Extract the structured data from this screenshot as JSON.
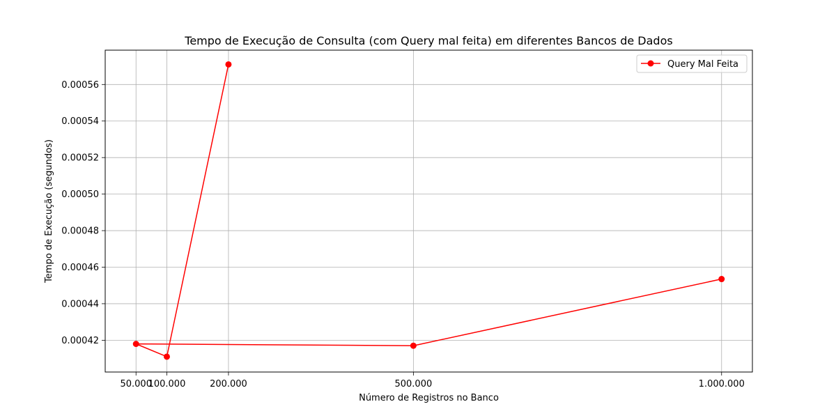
{
  "chart_data": {
    "type": "line",
    "title": "Tempo de Execução de Consulta (com Query mal feita) em diferentes Bancos de Dados",
    "xlabel": "Número de Registros no Banco",
    "ylabel": "Tempo de Execução (segundos)",
    "xlim": [
      0,
      1050000
    ],
    "ylim": [
      0.0004026,
      0.0005788
    ],
    "grid": true,
    "legend_position": "top-right",
    "x_ticks": [
      {
        "value": 50000,
        "label": "50.000"
      },
      {
        "value": 100000,
        "label": "100.000"
      },
      {
        "value": 200000,
        "label": "200.000"
      },
      {
        "value": 500000,
        "label": "500.000"
      },
      {
        "value": 1000000,
        "label": "1.000.000"
      }
    ],
    "y_ticks": [
      {
        "value": 0.00042,
        "label": "0.00042"
      },
      {
        "value": 0.00044,
        "label": "0.00044"
      },
      {
        "value": 0.00046,
        "label": "0.00046"
      },
      {
        "value": 0.00048,
        "label": "0.00048"
      },
      {
        "value": 0.0005,
        "label": "0.00050"
      },
      {
        "value": 0.00052,
        "label": "0.00052"
      },
      {
        "value": 0.00054,
        "label": "0.00054"
      },
      {
        "value": 0.00056,
        "label": "0.00056"
      }
    ],
    "series": [
      {
        "name": "Query Mal Feita",
        "color": "#ff0000",
        "marker": "circle",
        "x": [
          200000,
          100000,
          50000,
          500000,
          1000000
        ],
        "y": [
          0.000571,
          0.000411,
          0.000418,
          0.000417,
          0.0004535
        ]
      }
    ]
  }
}
